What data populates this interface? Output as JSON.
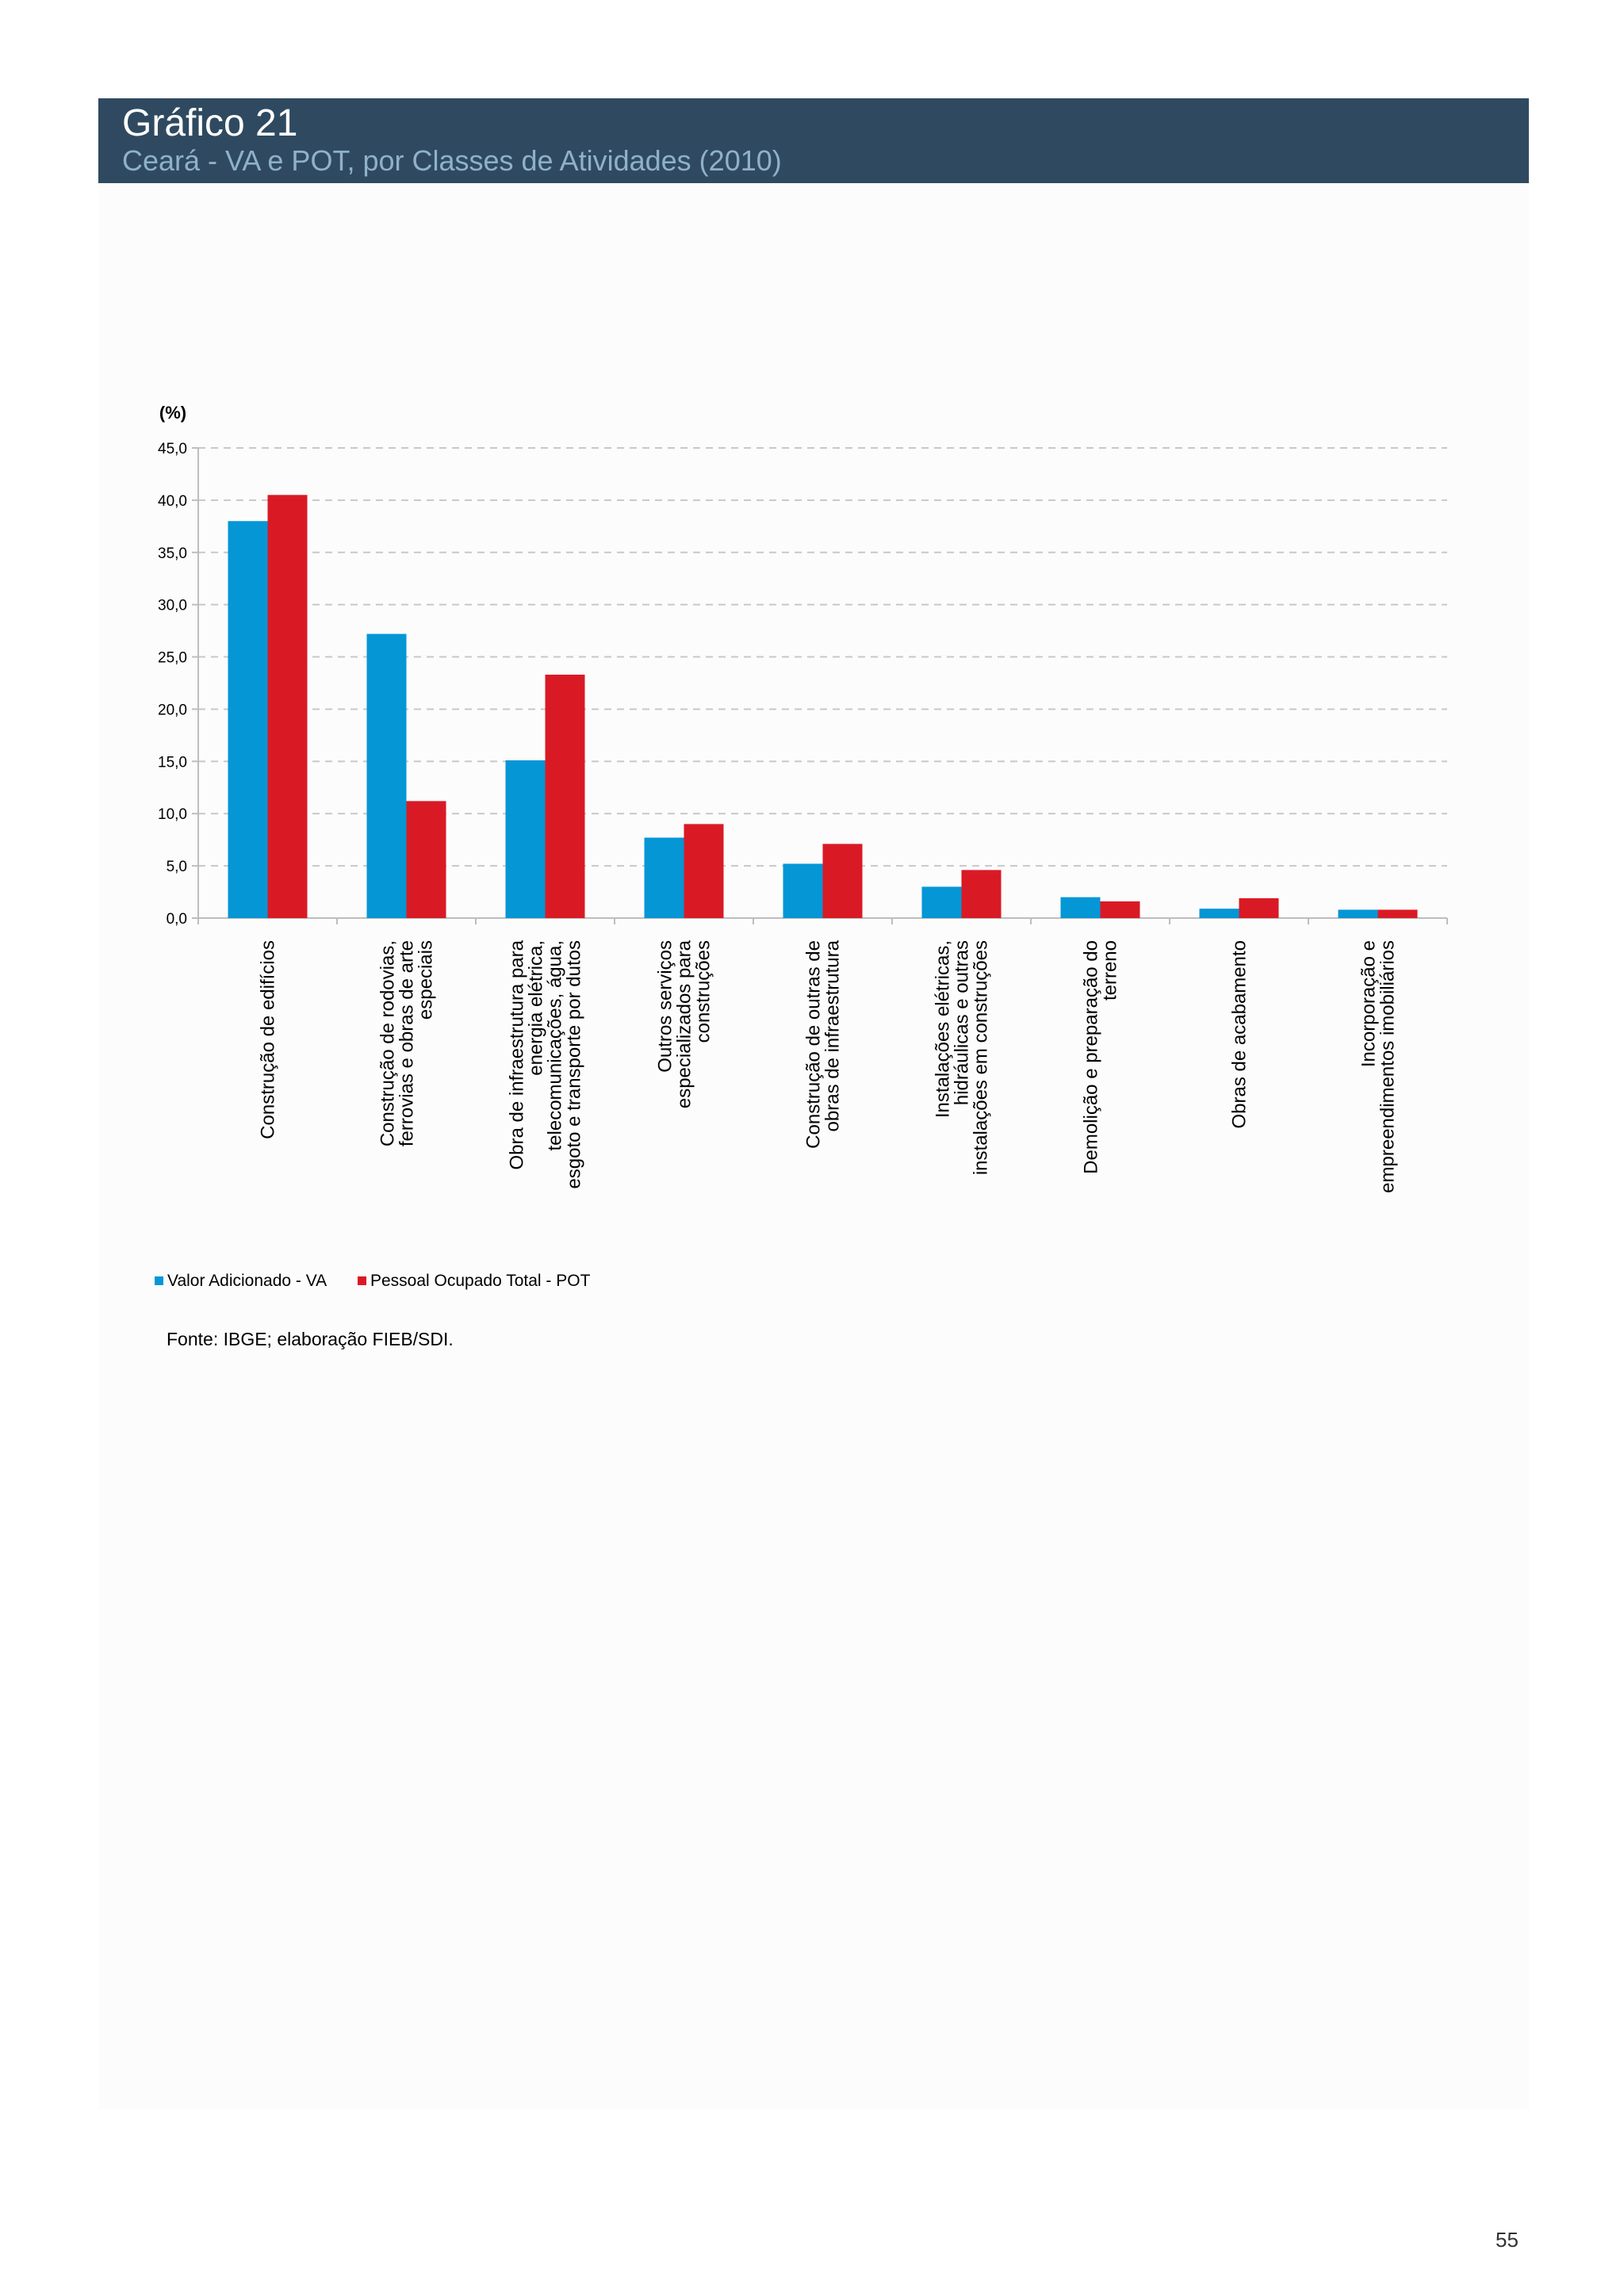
{
  "header": {
    "title": "Gráfico 21",
    "subtitle": "Ceará - VA e POT, por Classes de Atividades (2010)"
  },
  "colors": {
    "header_bg": "#2f4a60",
    "va": "#0596d6",
    "pot": "#d91a25"
  },
  "chart_data": {
    "type": "bar",
    "title": "Ceará - VA e POT, por Classes de Atividades (2010)",
    "ylabel": "(%)",
    "xlabel": "",
    "ylim": [
      0,
      45
    ],
    "yticks": [
      "0,0",
      "5,0",
      "10,0",
      "15,0",
      "20,0",
      "25,0",
      "30,0",
      "35,0",
      "40,0",
      "45,0"
    ],
    "grid": true,
    "legend_position": "bottom-left",
    "categories": [
      [
        "Construção de edifícios"
      ],
      [
        "Construção de rodovias,",
        "ferrovias e obras de arte",
        "especiais"
      ],
      [
        "Obra de infraestrutura para",
        "energia elétrica,",
        "telecomunicações, água,",
        "esgoto e transporte por dutos"
      ],
      [
        "Outros serviços",
        "especializados para",
        "construções"
      ],
      [
        "Construção  de outras de",
        "obras de infraestrutura"
      ],
      [
        "Instalações elétricas,",
        "hidráulicas e outras",
        "instalações em construções"
      ],
      [
        "Demolição e preparação do",
        "terreno"
      ],
      [
        "Obras de acabamento"
      ],
      [
        "Incorporação e",
        "empreendimentos imobiliários"
      ]
    ],
    "series": [
      {
        "name": "Valor Adicionado - VA",
        "color": "#0596d6",
        "values": [
          38.0,
          27.2,
          15.1,
          7.7,
          5.2,
          3.0,
          2.0,
          0.9,
          0.8
        ]
      },
      {
        "name": "Pessoal Ocupado Total - POT",
        "color": "#d91a25",
        "values": [
          40.5,
          11.2,
          23.3,
          9.0,
          7.1,
          4.6,
          1.6,
          1.9,
          0.8
        ]
      }
    ]
  },
  "legend": {
    "va_label": "Valor Adicionado - VA",
    "pot_label": "Pessoal Ocupado Total - POT"
  },
  "source": "Fonte: IBGE; elaboração FIEB/SDI.",
  "page_number": "55"
}
